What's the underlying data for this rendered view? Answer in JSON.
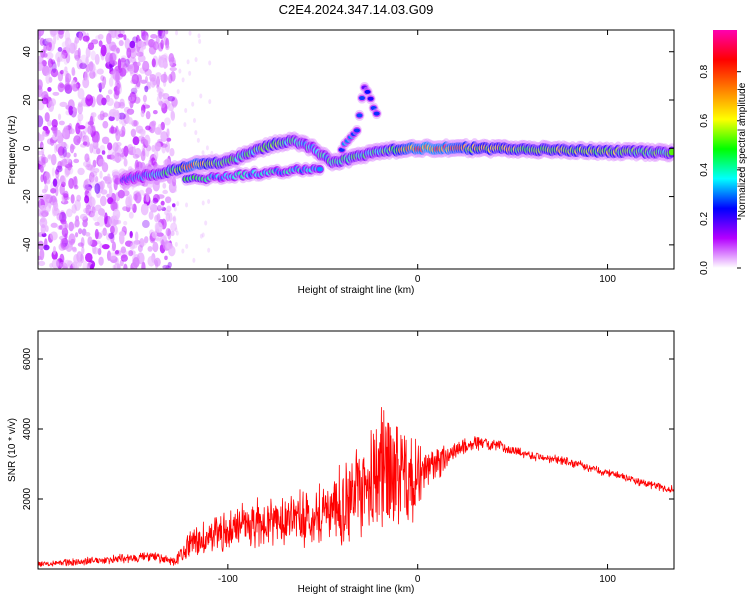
{
  "title": "C2E4.2024.347.14.03.G09",
  "chart_data": [
    {
      "type": "heatmap",
      "name": "spectrogram",
      "xlabel": "Height of straight line (km)",
      "ylabel": "Frequency (Hz)",
      "xlim": [
        -200,
        135
      ],
      "ylim": [
        -50,
        49
      ],
      "xticks": [
        -100,
        0,
        100
      ],
      "xtick_labels": [
        "-100",
        "0",
        "100"
      ],
      "yticks": [
        -40,
        -20,
        0,
        20,
        40
      ],
      "ytick_labels": [
        "-40",
        "-20",
        "0",
        "20",
        "40"
      ],
      "colorbar": {
        "label": "Normalized spectral amplitude",
        "range": [
          0,
          0.97
        ],
        "ticks": [
          0.0,
          0.2,
          0.4,
          0.6,
          0.8
        ],
        "tick_labels": [
          "0.0",
          "0.2",
          "0.4",
          "0.6",
          "0.8"
        ],
        "colors": [
          "#ffffff",
          "#b400ff",
          "#0000ff",
          "#00ffff",
          "#00ff00",
          "#ffff00",
          "#ff8000",
          "#ff0000",
          "#ff00b0"
        ]
      },
      "grid": false,
      "features": {
        "noise_region_x": [
          -200,
          -128
        ],
        "trace": [
          {
            "x": -155,
            "y": -13,
            "amp": 0.3
          },
          {
            "x": -140,
            "y": -11,
            "amp": 0.4
          },
          {
            "x": -128,
            "y": -9,
            "amp": 0.55
          },
          {
            "x": -118,
            "y": -7,
            "amp": 0.85
          },
          {
            "x": -105,
            "y": -6,
            "amp": 0.55
          },
          {
            "x": -95,
            "y": -4,
            "amp": 0.45
          },
          {
            "x": -85,
            "y": -1,
            "amp": 0.5
          },
          {
            "x": -75,
            "y": 2,
            "amp": 0.6
          },
          {
            "x": -65,
            "y": 3,
            "amp": 0.45
          },
          {
            "x": -55,
            "y": 0,
            "amp": 0.4
          },
          {
            "x": -45,
            "y": -6,
            "amp": 0.45
          },
          {
            "x": -35,
            "y": -4,
            "amp": 0.5
          },
          {
            "x": -25,
            "y": -2,
            "amp": 0.45
          },
          {
            "x": -15,
            "y": -1,
            "amp": 0.55
          },
          {
            "x": -5,
            "y": 0,
            "amp": 0.8
          },
          {
            "x": 5,
            "y": 0,
            "amp": 0.9
          },
          {
            "x": 15,
            "y": 0,
            "amp": 0.85
          },
          {
            "x": 30,
            "y": 0,
            "amp": 0.7
          },
          {
            "x": 60,
            "y": -0.5,
            "amp": 0.6
          },
          {
            "x": 90,
            "y": -1,
            "amp": 0.65
          },
          {
            "x": 120,
            "y": -1.5,
            "amp": 0.55
          },
          {
            "x": 135,
            "y": -2,
            "amp": 0.5
          }
        ],
        "secondary_trace": [
          {
            "x": -122,
            "y": -13,
            "amp": 0.55
          },
          {
            "x": -105,
            "y": -12,
            "amp": 0.35
          },
          {
            "x": -92,
            "y": -11,
            "amp": 0.4
          },
          {
            "x": -50,
            "y": -8,
            "amp": 0.4
          }
        ],
        "upper_branch": [
          {
            "x": -40,
            "y": 0,
            "amp": 0.3
          },
          {
            "x": -32,
            "y": 8,
            "amp": 0.3
          },
          {
            "x": -28,
            "y": 26,
            "amp": 0.25
          },
          {
            "x": -20,
            "y": 12,
            "amp": 0.3
          }
        ]
      }
    },
    {
      "type": "line",
      "name": "snr",
      "xlabel": "Height of straight line (km)",
      "ylabel": "SNR (10 * v/v)",
      "xlim": [
        -200,
        135
      ],
      "ylim": [
        0,
        6800
      ],
      "xticks": [
        -100,
        0,
        100
      ],
      "xtick_labels": [
        "-100",
        "0",
        "100"
      ],
      "yticks": [
        2000,
        4000,
        6000
      ],
      "ytick_labels": [
        "2000",
        "4000",
        "6000"
      ],
      "color": "#ff0000",
      "grid": false,
      "envelope": {
        "x": [
          -200,
          -180,
          -160,
          -140,
          -128,
          -120,
          -110,
          -100,
          -90,
          -80,
          -70,
          -60,
          -50,
          -40,
          -30,
          -20,
          -15,
          -10,
          -5,
          0,
          10,
          20,
          30,
          40,
          50,
          60,
          70,
          80,
          90,
          100,
          110,
          120,
          135
        ],
        "mean": [
          150,
          200,
          280,
          350,
          200,
          700,
          900,
          1100,
          1300,
          1300,
          1500,
          1400,
          1700,
          1800,
          2200,
          2800,
          3000,
          2600,
          2400,
          2700,
          3000,
          3400,
          3600,
          3550,
          3400,
          3250,
          3150,
          3050,
          2900,
          2750,
          2600,
          2450,
          2250
        ],
        "spread": [
          100,
          120,
          150,
          180,
          120,
          500,
          600,
          700,
          800,
          800,
          900,
          900,
          1100,
          1300,
          1600,
          2000,
          2300,
          2000,
          1600,
          1200,
          600,
          300,
          250,
          200,
          150,
          150,
          150,
          150,
          150,
          130,
          130,
          130,
          130
        ]
      }
    }
  ]
}
